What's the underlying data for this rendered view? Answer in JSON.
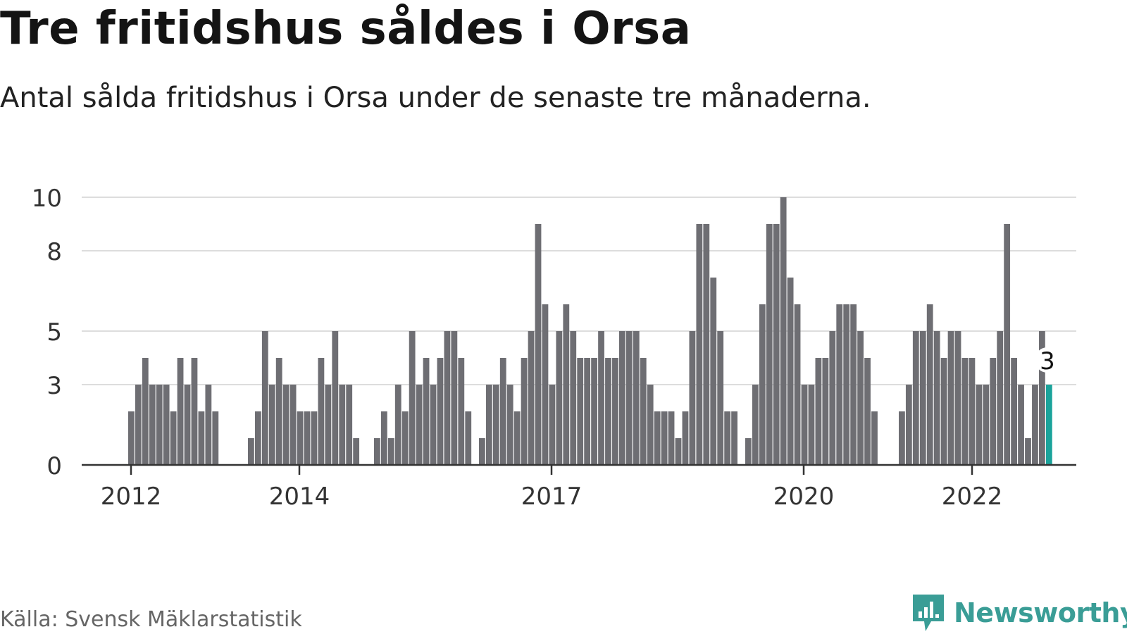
{
  "header": {
    "title": "Tre fritidshus såldes i Orsa",
    "subtitle": "Antal sålda fritidshus i Orsa under de senaste tre månaderna."
  },
  "footer": {
    "source": "Källa: Svensk Mäklarstatistik",
    "brand": "Newsworthy",
    "brand_icon": "newsworthy-bars-icon"
  },
  "colors": {
    "bar": "#6e6e73",
    "highlight": "#1aa39b",
    "grid": "#dddddd",
    "axis": "#333333",
    "brand": "#3a9d96"
  },
  "chart_data": {
    "type": "bar",
    "title": "Tre fritidshus såldes i Orsa",
    "subtitle": "Antal sålda fritidshus i Orsa under de senaste tre månaderna.",
    "xlabel": "",
    "ylabel": "",
    "ylim": [
      0,
      10
    ],
    "yticks": [
      0,
      3,
      5,
      8,
      10
    ],
    "x_tick_labels": [
      "2012",
      "2014",
      "2017",
      "2020",
      "2022"
    ],
    "grid": true,
    "annotation": {
      "label": "3",
      "target": "last"
    },
    "series": [
      {
        "values": [
          2,
          3,
          4,
          3,
          3,
          3,
          2,
          4,
          3,
          4,
          2,
          3,
          2
        ],
        "highlight_last": false
      },
      {
        "values": [
          1,
          2,
          5,
          3,
          4,
          3,
          3,
          2,
          2,
          2,
          4,
          3,
          5,
          3,
          3,
          1
        ]
      },
      {
        "values": [
          1,
          2,
          1,
          3,
          2,
          5,
          3,
          4,
          3,
          4,
          5,
          5,
          4,
          2
        ]
      },
      {
        "values": [
          1,
          3,
          3,
          4,
          3,
          2,
          4,
          5,
          9,
          6,
          3,
          5,
          6,
          5,
          4,
          4,
          4,
          5,
          4,
          4,
          5,
          5,
          5,
          4,
          3,
          2,
          2,
          2,
          1,
          2,
          5,
          9,
          9,
          7,
          5,
          2,
          2
        ]
      },
      {
        "values": [
          1,
          3,
          6,
          9,
          9,
          10,
          7,
          6,
          3,
          3,
          4,
          4,
          5,
          6,
          6,
          6,
          5,
          4,
          2
        ]
      },
      {
        "values": [
          2,
          3,
          5,
          5,
          6,
          5,
          4,
          5,
          5,
          4,
          4,
          3,
          3,
          4,
          5,
          9,
          4,
          3,
          1,
          3,
          5,
          3
        ]
      }
    ]
  }
}
